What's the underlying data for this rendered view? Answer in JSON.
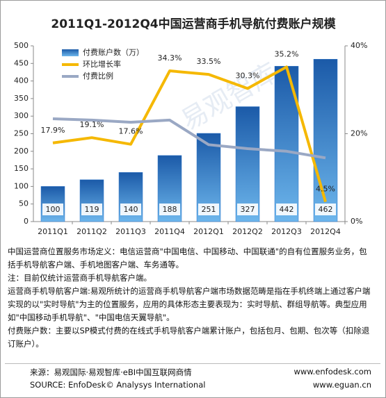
{
  "chart_data": {
    "type": "bar",
    "title": "2011Q1-2012Q4中国运营商手机导航付费账户规模",
    "watermark": "易观智库",
    "categories": [
      "2011Q1",
      "2011Q2",
      "2011Q3",
      "2011Q4",
      "2012Q1",
      "2012Q2",
      "2012Q3",
      "2012Q4"
    ],
    "series": [
      {
        "name": "付费账户数（万）",
        "type": "bar",
        "color": "#2e75c8",
        "values": [
          100,
          119,
          140,
          188,
          251,
          327,
          442,
          462
        ]
      },
      {
        "name": "环比增长率",
        "type": "line",
        "axis": "y2",
        "color": "#f5b800",
        "values": [
          17.9,
          19.1,
          17.6,
          34.3,
          33.5,
          30.3,
          35.2,
          4.5
        ],
        "value_labels": [
          "17.9%",
          "19.1%",
          "17.6%",
          "34.3%",
          "33.5%",
          "30.3%",
          "35.2%",
          "4.5%"
        ]
      },
      {
        "name": "付费比例",
        "type": "line",
        "axis": "y2",
        "color": "#9aa8c4",
        "values": [
          23.4,
          23.1,
          22.6,
          23.1,
          17.5,
          16.6,
          16.0,
          14.5
        ]
      }
    ],
    "ylim": [
      0,
      500
    ],
    "yticks": [
      0,
      50,
      100,
      150,
      200,
      250,
      300,
      350,
      400,
      450,
      500
    ],
    "y2lim": [
      0,
      40
    ],
    "y2ticks": [
      {
        "value": 0,
        "label": "0%"
      },
      {
        "value": 20,
        "label": "20%"
      },
      {
        "value": 40,
        "label": "40%"
      }
    ],
    "legend": "top-left"
  },
  "notes": [
    "中国运营商位置服务市场定义：电信运营商\"中国电信、中国移动、中国联通\"的自有位置服务业务，包括手机导航客户端、手机地图客户端、车务通等。",
    "注：目前仅统计运营商手机导航客户端。",
    "运营商手机导航客户端:易观所统计的运营商手机导航客户端市场数据范畴是指在手机终端上通过客户端实现的以\"实时导航\"为主的位置服务，应用的具体形态主要表现为：实时导航、群组导航等。典型应用如\"中国移动手机导航\"、\"中国电信天翼导航\"。",
    "付费账户数：主要以SP模式付费的在线式手机导航客户端累计账户，包括包月、包期、包次等（扣除退订账户）。"
  ],
  "source": {
    "cn": "来源：易观国际·易观智库·eBI中国互联网商情",
    "url1": "www.enfodesk.com",
    "en": "SOURCE: EnfoDesk© Analysys International",
    "url2": "www.eguan.cn"
  }
}
